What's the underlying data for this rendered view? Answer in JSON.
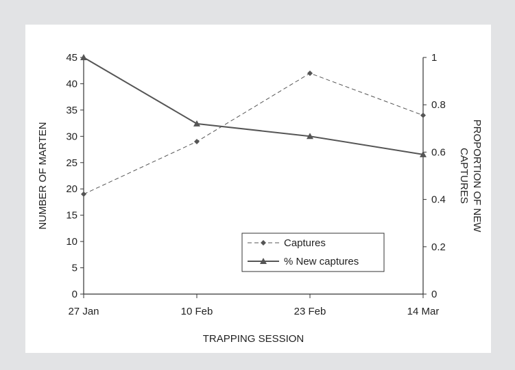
{
  "chart_data": {
    "type": "line",
    "categories": [
      "27 Jan",
      "10 Feb",
      "23 Feb",
      "14 Mar"
    ],
    "xlabel": "TRAPPING SESSION",
    "ylabel_left": "NUMBER OF MARTEN",
    "ylabel_right": [
      "PROPORTION OF NEW",
      "CAPTURES"
    ],
    "ylim_left": [
      0,
      45
    ],
    "ylim_right": [
      0,
      1
    ],
    "yticks_left": [
      0,
      5,
      10,
      15,
      20,
      25,
      30,
      35,
      40,
      45
    ],
    "yticks_right": [
      0,
      0.2,
      0.4,
      0.6,
      0.8,
      1
    ],
    "grid": false,
    "legend_position": "bottom-right inside plot",
    "series": [
      {
        "name": "Captures",
        "axis": "left",
        "values": [
          19,
          29,
          42,
          34
        ],
        "marker": "diamond",
        "line_style": "dashed",
        "color": "#555555",
        "legend_label": "- -◆- - Captures"
      },
      {
        "name": "% New captures",
        "axis": "right",
        "values": [
          1.0,
          0.72,
          0.667,
          0.59
        ],
        "marker": "triangle",
        "line_style": "solid",
        "color": "#555555",
        "legend_label": "% New captures"
      }
    ]
  },
  "colors": {
    "frame_background": "#e2e3e5",
    "panel_background": "#ffffff",
    "axis": "#333333",
    "series": "#555555"
  }
}
